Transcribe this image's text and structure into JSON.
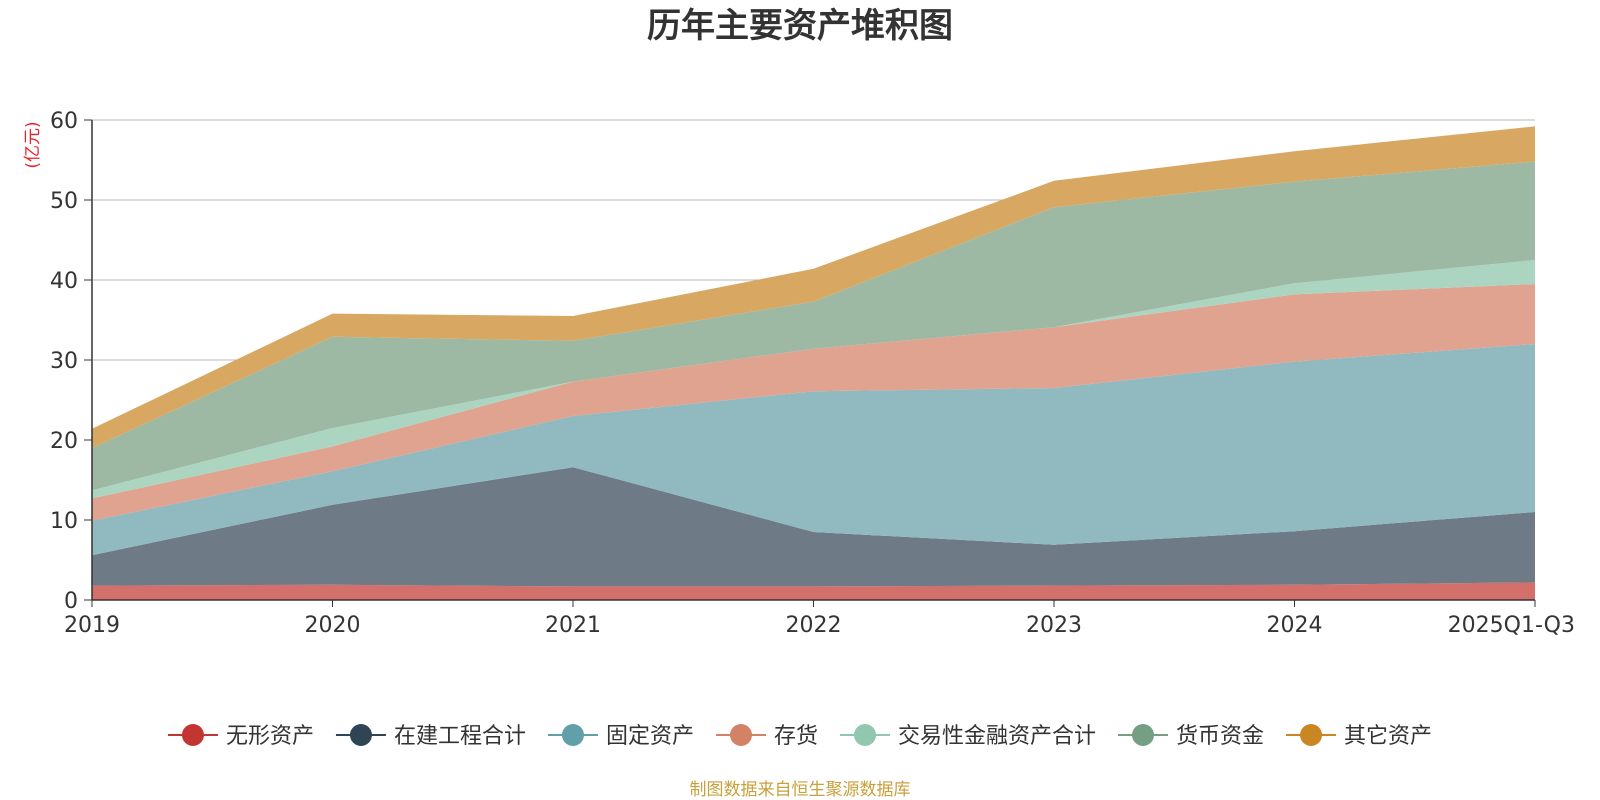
{
  "chart_data": {
    "type": "area",
    "stacked": true,
    "title": "历年主要资产堆积图",
    "ylabel": "(亿元)",
    "xlabel": "",
    "categories": [
      "2019",
      "2020",
      "2021",
      "2022",
      "2023",
      "2024",
      "2025Q1-Q3"
    ],
    "ylim": [
      0,
      60
    ],
    "yticks": [
      0,
      10,
      20,
      30,
      40,
      50,
      60
    ],
    "grid": true,
    "legend_position": "bottom",
    "series": [
      {
        "name": "无形资产",
        "color": "#c23531",
        "fill": "#d4706c",
        "values": [
          1.8,
          1.9,
          1.7,
          1.7,
          1.8,
          1.9,
          2.2
        ]
      },
      {
        "name": "在建工程合计",
        "color": "#2f4554",
        "fill": "#6e7b86",
        "values": [
          3.8,
          10.0,
          14.9,
          6.8,
          5.1,
          6.7,
          8.8
        ]
      },
      {
        "name": "固定资产",
        "color": "#61a0a8",
        "fill": "#90babf",
        "values": [
          4.3,
          4.2,
          6.4,
          17.6,
          19.6,
          21.2,
          21.0
        ]
      },
      {
        "name": "存货",
        "color": "#d48265",
        "fill": "#e0a38f",
        "values": [
          2.8,
          3.1,
          4.3,
          5.3,
          7.6,
          8.4,
          7.5
        ]
      },
      {
        "name": "交易性金融资产合计",
        "color": "#91c7ae",
        "fill": "#acd5c1",
        "values": [
          1.0,
          2.3,
          0.0,
          0.0,
          0.0,
          1.4,
          3.0
        ]
      },
      {
        "name": "货币资金",
        "color": "#749f83",
        "fill": "#9db9a3",
        "values": [
          5.3,
          11.4,
          5.1,
          5.9,
          15.0,
          12.7,
          12.3
        ]
      },
      {
        "name": "其它资产",
        "color": "#ca8622",
        "fill": "#d8a862",
        "values": [
          2.4,
          2.9,
          3.1,
          4.1,
          3.3,
          3.8,
          4.4
        ]
      }
    ],
    "source": "制图数据来自恒生聚源数据库",
    "source_color": "#c8a03c"
  }
}
